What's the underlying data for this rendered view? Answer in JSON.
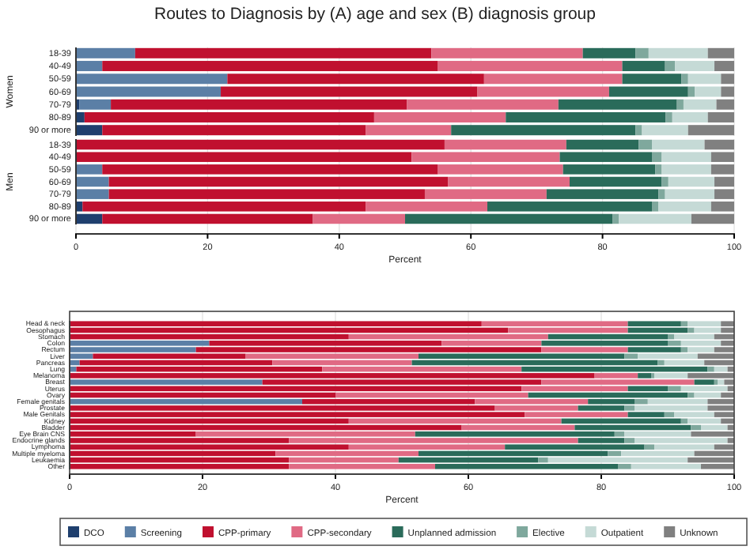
{
  "chart_data": [
    {
      "type": "bar",
      "orientation": "horizontal",
      "stacked": true,
      "title": "Routes to Diagnosis by (A) age and sex (B) diagnosis group",
      "ylabel": "Women",
      "categories": [
        "18-39",
        "40-49",
        "50-59",
        "60-69",
        "70-79",
        "80-89",
        "90 or more"
      ],
      "xlim": [
        0,
        100
      ],
      "xticks": [
        0,
        20,
        40,
        60,
        80,
        100
      ],
      "tick_labels": "y",
      "grid": "x",
      "legend": false,
      "series": [
        {
          "color": "#1f3f6e",
          "values": [
            0,
            0,
            0,
            0,
            0.5,
            1.3,
            4
          ]
        },
        {
          "color": "#5b7fa6",
          "values": [
            9,
            4,
            23,
            22,
            4.8,
            0,
            0
          ]
        },
        {
          "color": "#c0102f",
          "values": [
            45,
            51,
            39,
            39,
            45,
            44,
            40
          ]
        },
        {
          "color": "#e06a84",
          "values": [
            23,
            28,
            21,
            20,
            23,
            20,
            13
          ]
        },
        {
          "color": "#2a6b5a",
          "values": [
            8,
            6.5,
            9,
            12,
            18,
            24.3,
            28
          ]
        },
        {
          "color": "#7fa89d",
          "values": [
            2,
            1.5,
            1,
            1,
            1,
            1,
            1
          ]
        },
        {
          "color": "#c5dad6",
          "values": [
            9,
            6,
            5,
            4,
            5,
            5.4,
            7
          ]
        },
        {
          "color": "#808080",
          "values": [
            4,
            3,
            2,
            2,
            2.7,
            4,
            7
          ]
        }
      ]
    },
    {
      "type": "bar",
      "orientation": "horizontal",
      "stacked": true,
      "xlabel": "Percent",
      "ylabel": "Men",
      "categories": [
        "18-39",
        "40-49",
        "50-59",
        "60-69",
        "70-79",
        "80-89",
        "90 or more"
      ],
      "xlim": [
        0,
        100
      ],
      "xticks": [
        0,
        20,
        40,
        60,
        80,
        100
      ],
      "grid": "x",
      "legend": false,
      "series": [
        {
          "color": "#1f3f6e",
          "values": [
            0,
            0,
            0,
            0,
            0,
            1,
            4
          ]
        },
        {
          "color": "#5b7fa6",
          "values": [
            0,
            0,
            4,
            5,
            5,
            0,
            0
          ]
        },
        {
          "color": "#c0102f",
          "values": [
            56,
            51,
            51,
            51.5,
            48,
            43,
            32
          ]
        },
        {
          "color": "#e06a84",
          "values": [
            18.5,
            22.5,
            19,
            18.5,
            18.5,
            18.5,
            14
          ]
        },
        {
          "color": "#2a6b5a",
          "values": [
            11,
            14,
            14,
            14,
            17,
            25,
            31.5
          ]
        },
        {
          "color": "#7fa89d",
          "values": [
            2,
            1.5,
            1,
            1,
            1,
            1,
            1
          ]
        },
        {
          "color": "#c5dad6",
          "values": [
            8,
            7.5,
            7.5,
            7,
            7.5,
            8,
            11
          ]
        },
        {
          "color": "#808080",
          "values": [
            4.5,
            3.5,
            3.5,
            3,
            3,
            3.5,
            6.5
          ]
        }
      ]
    },
    {
      "type": "bar",
      "orientation": "horizontal",
      "stacked": true,
      "xlabel": "Percent",
      "categories": [
        "Head & neck",
        "Oesophagus",
        "Stomach",
        "Colon",
        "Rectum",
        "Liver",
        "Pancreas",
        "Lung",
        "Melanoma",
        "Breast",
        "Uterus",
        "Ovary",
        "Female genitals",
        "Prostate",
        "Male Genitals",
        "Kidney",
        "Bladder",
        "Eye Brain CNS",
        "Endocrine glands",
        "Lymphoma",
        "Multiple myeloma",
        "Leukaemia",
        "Other"
      ],
      "xlim": [
        0,
        100
      ],
      "xticks": [
        0,
        20,
        40,
        60,
        80,
        100
      ],
      "grid": "x",
      "legend": "bottom",
      "series": [
        {
          "name": "DCO",
          "color": "#1f3f6e",
          "values": [
            0,
            0,
            0,
            0,
            0,
            0,
            0,
            0,
            0,
            0,
            0,
            0,
            0,
            0,
            0,
            0,
            0,
            0,
            0,
            0,
            0,
            0,
            0
          ]
        },
        {
          "name": "Screening",
          "color": "#5b7fa6",
          "values": [
            0,
            0,
            0,
            21,
            19,
            3.5,
            1.5,
            1,
            0,
            29,
            0,
            0,
            35,
            0,
            0,
            0,
            0,
            0,
            0,
            0,
            0,
            0,
            0
          ]
        },
        {
          "name": "CPP-primary",
          "color": "#c0102f",
          "values": [
            62,
            66,
            42,
            35,
            52,
            23,
            29,
            37,
            79,
            42,
            68,
            40,
            26,
            64,
            68.5,
            42,
            59,
            19,
            33,
            42,
            31,
            33,
            33
          ]
        },
        {
          "name": "CPP-secondary",
          "color": "#e06a84",
          "values": [
            22,
            18,
            30,
            15,
            13,
            26,
            21,
            30,
            6.5,
            23,
            16,
            29,
            17,
            12.5,
            15.5,
            32,
            17,
            33,
            43.5,
            23.5,
            21.5,
            16.5,
            22
          ]
        },
        {
          "name": "Unplanned admission",
          "color": "#2a6b5a",
          "values": [
            8,
            9,
            18,
            19,
            8,
            31,
            37,
            28,
            2,
            3,
            6,
            24,
            7,
            7,
            5.5,
            18,
            17.5,
            30,
            7,
            21,
            28.5,
            21,
            27.5
          ]
        },
        {
          "name": "Elective",
          "color": "#7fa89d",
          "values": [
            1,
            1,
            1,
            2,
            1,
            2,
            1,
            1,
            0.5,
            0.5,
            2,
            1,
            2,
            1.5,
            1.5,
            1,
            1.5,
            1.5,
            1.5,
            1.5,
            2,
            1.5,
            2
          ]
        },
        {
          "name": "Outpatient",
          "color": "#c5dad6",
          "values": [
            5,
            4,
            6,
            6,
            4,
            9,
            6,
            2,
            5,
            1,
            7,
            4,
            9,
            11,
            6,
            5,
            4,
            10,
            14,
            9,
            11,
            21,
            10.5
          ]
        },
        {
          "name": "Unknown",
          "color": "#808080",
          "values": [
            2,
            2,
            3,
            2,
            3,
            5.5,
            4.5,
            1,
            7,
            1.5,
            1,
            2,
            4,
            4,
            3,
            2,
            1,
            6.5,
            1,
            3,
            6,
            7,
            5
          ]
        }
      ]
    }
  ]
}
